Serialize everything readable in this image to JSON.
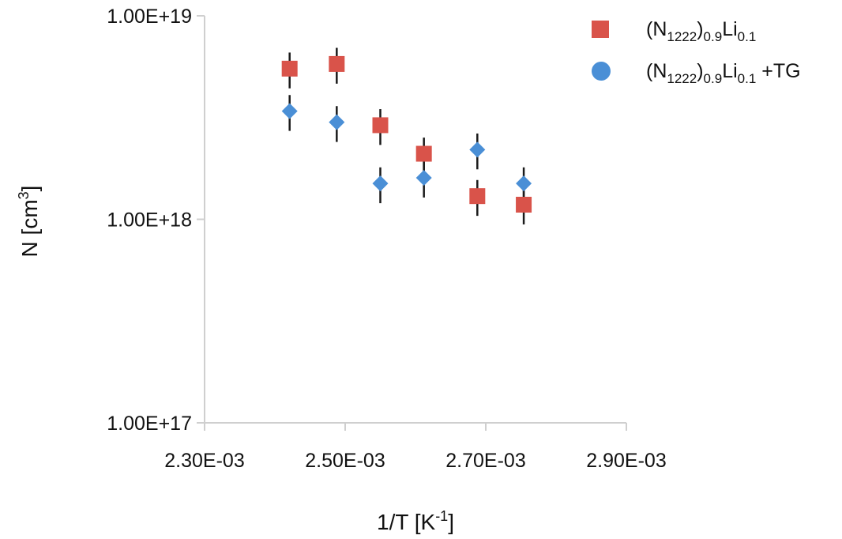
{
  "chart_data": {
    "type": "scatter",
    "title": "",
    "xlabel": {
      "base": "1/T [K",
      "sup": "-1",
      "end": "]"
    },
    "ylabel": {
      "base": "N [cm",
      "sup": "3",
      "end": "]"
    },
    "x_scale": "linear",
    "y_scale": "log",
    "xlim": [
      0.0023,
      0.0029
    ],
    "ylim": [
      1e+17,
      1e+19
    ],
    "x_ticks": [
      0.0023,
      0.0025,
      0.0027,
      0.0029
    ],
    "x_tick_labels": [
      "2.30E-03",
      "2.50E-03",
      "2.70E-03",
      "2.90E-03"
    ],
    "y_ticks": [
      1e+17,
      1e+18,
      1e+19
    ],
    "y_tick_labels": [
      "1.00E+17",
      "1.00E+18",
      "1.00E+19"
    ],
    "grid": false,
    "legend_position": "top-right",
    "series": [
      {
        "name": {
          "a": "(N",
          "a_sub": "1222",
          "b": ")",
          "b_sub": "0.9",
          "c": "Li",
          "c_sub": "0.1",
          "d": ""
        },
        "marker": "square",
        "color": "#d9534a",
        "points": [
          {
            "x": 0.002421,
            "y": 5.5e+18,
            "err": 0.2
          },
          {
            "x": 0.002488,
            "y": 5.8e+18,
            "err": 0.2
          },
          {
            "x": 0.00255,
            "y": 2.9e+18,
            "err": 0.2
          },
          {
            "x": 0.002612,
            "y": 2.1e+18,
            "err": 0.2
          },
          {
            "x": 0.002688,
            "y": 1.3e+18,
            "err": 0.2
          },
          {
            "x": 0.002754,
            "y": 1.18e+18,
            "err": 0.2
          }
        ]
      },
      {
        "name": {
          "a": "(N",
          "a_sub": "1222",
          "b": ")",
          "b_sub": "0.9",
          "c": "Li",
          "c_sub": "0.1",
          "d": " +TG"
        },
        "marker": "diamond",
        "color": "#4a8fd6",
        "points": [
          {
            "x": 0.002421,
            "y": 3.4e+18,
            "err": 0.2
          },
          {
            "x": 0.002488,
            "y": 3e+18,
            "err": 0.2
          },
          {
            "x": 0.00255,
            "y": 1.5e+18,
            "err": 0.2
          },
          {
            "x": 0.002612,
            "y": 1.6e+18,
            "err": 0.2
          },
          {
            "x": 0.002688,
            "y": 2.2e+18,
            "err": 0.2
          },
          {
            "x": 0.002754,
            "y": 1.5e+18,
            "err": 0.2
          }
        ]
      }
    ]
  }
}
